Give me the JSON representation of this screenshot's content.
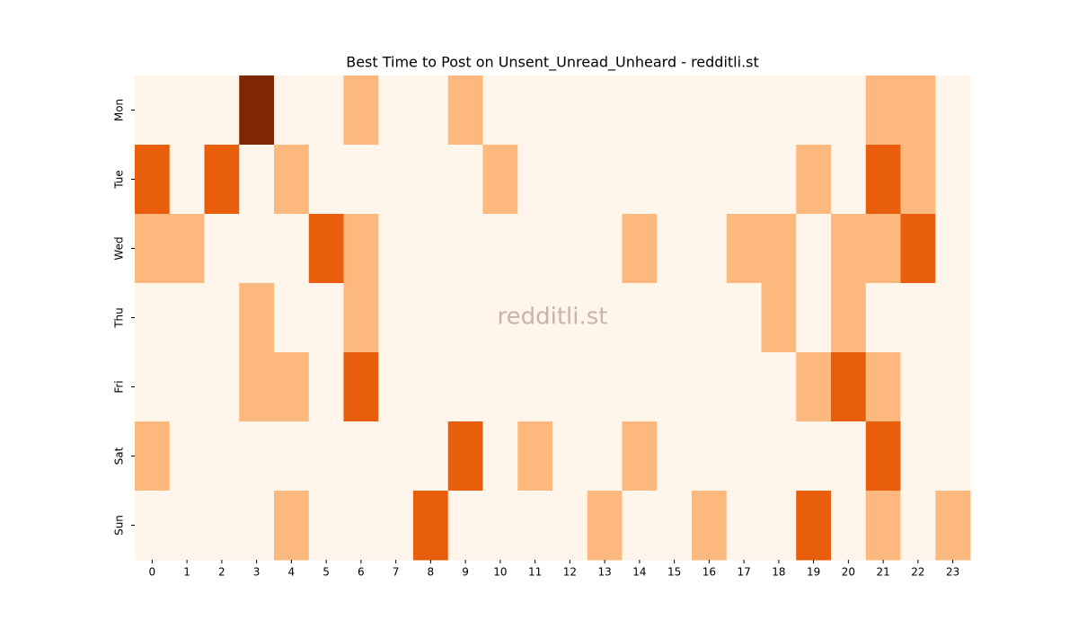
{
  "chart_data": {
    "type": "heatmap",
    "title": "Best Time to Post on Unsent_Unread_Unheard - redditli.st",
    "watermark": "redditli.st",
    "x": [
      0,
      1,
      2,
      3,
      4,
      5,
      6,
      7,
      8,
      9,
      10,
      11,
      12,
      13,
      14,
      15,
      16,
      17,
      18,
      19,
      20,
      21,
      22,
      23
    ],
    "categories": [
      "Mon",
      "Tue",
      "Wed",
      "Thu",
      "Fri",
      "Sat",
      "Sun"
    ],
    "values": [
      [
        0,
        0,
        0,
        3,
        0,
        0,
        1,
        0,
        0,
        1,
        0,
        0,
        0,
        0,
        0,
        0,
        0,
        0,
        0,
        0,
        0,
        1,
        1,
        0
      ],
      [
        2,
        0,
        2,
        0,
        1,
        0,
        0,
        0,
        0,
        0,
        1,
        0,
        0,
        0,
        0,
        0,
        0,
        0,
        0,
        1,
        0,
        2,
        1,
        0
      ],
      [
        1,
        1,
        0,
        0,
        0,
        2,
        1,
        0,
        0,
        0,
        0,
        0,
        0,
        0,
        1,
        0,
        0,
        1,
        1,
        0,
        1,
        1,
        2,
        0
      ],
      [
        0,
        0,
        0,
        1,
        0,
        0,
        1,
        0,
        0,
        0,
        0,
        0,
        0,
        0,
        0,
        0,
        0,
        0,
        1,
        0,
        1,
        0,
        0,
        0
      ],
      [
        0,
        0,
        0,
        1,
        1,
        0,
        2,
        0,
        0,
        0,
        0,
        0,
        0,
        0,
        0,
        0,
        0,
        0,
        0,
        1,
        2,
        1,
        0,
        0
      ],
      [
        1,
        0,
        0,
        0,
        0,
        0,
        0,
        0,
        0,
        2,
        0,
        1,
        0,
        0,
        1,
        0,
        0,
        0,
        0,
        0,
        0,
        2,
        0,
        0
      ],
      [
        0,
        0,
        0,
        0,
        1,
        0,
        0,
        0,
        2,
        0,
        0,
        0,
        0,
        1,
        0,
        0,
        1,
        0,
        0,
        2,
        0,
        1,
        0,
        1
      ]
    ],
    "vlim": [
      0,
      3
    ],
    "colormap": [
      "#fff5eb",
      "#fdb97d",
      "#e95e0d",
      "#7f2704"
    ]
  }
}
